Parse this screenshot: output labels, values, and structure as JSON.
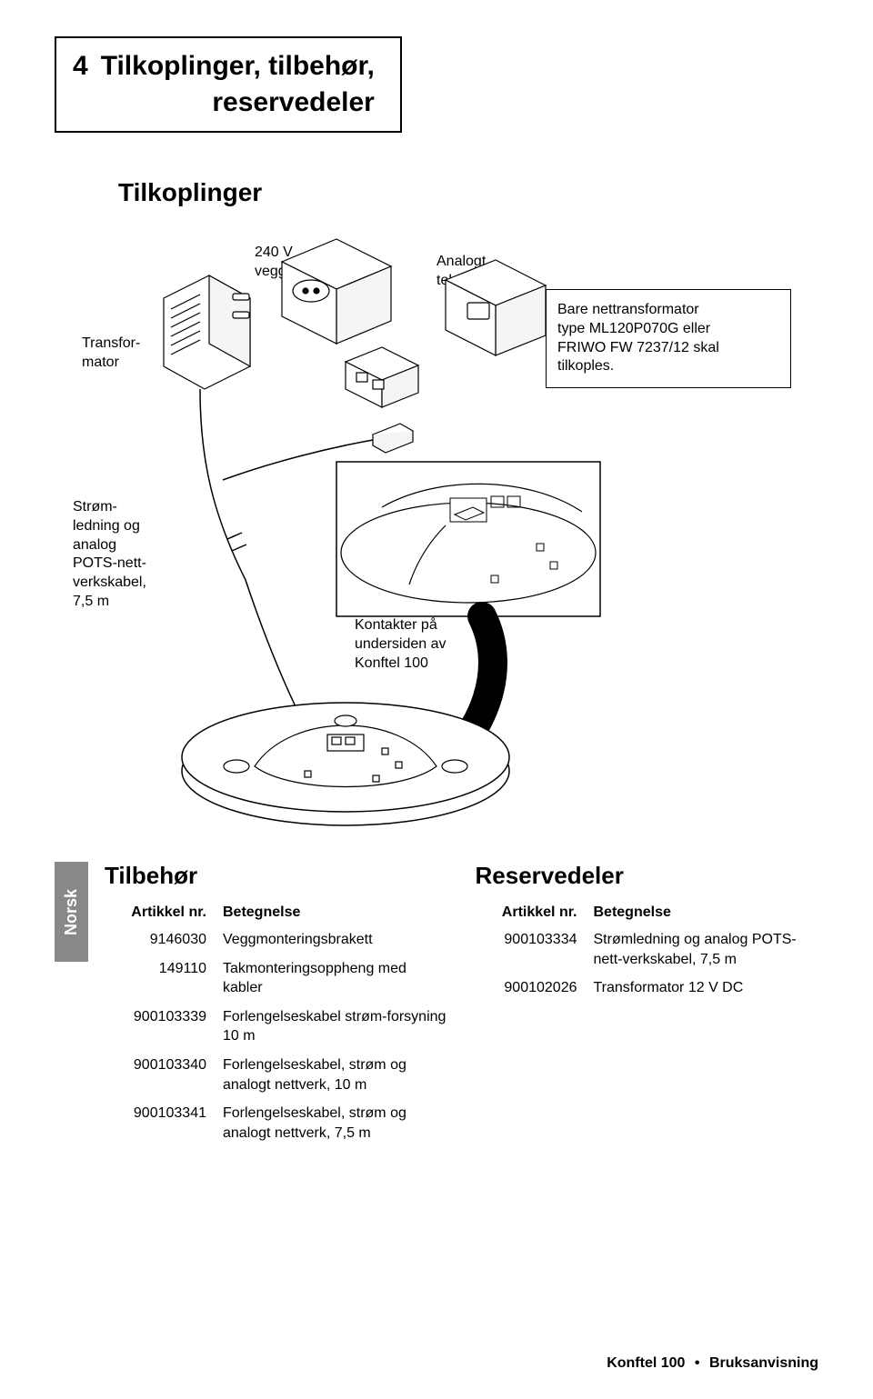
{
  "section_number": "4",
  "title_line1": "Tilkoplinger, tilbehør,",
  "title_line2": "reservedeler",
  "subheading_tilkoplinger": "Tilkoplinger",
  "labels": {
    "transformator": "Transfor-\nmator",
    "veggkontakt": "240 V\nveggkontakt",
    "analogt": "Analogt\ntelefonuttak",
    "stromledning": "Strøm-\nledning og\nanalog\nPOTS-nett-\nverkskabel,\n7,5 m",
    "kontakter": "Kontakter på\nundersiden av\nKonftel 100"
  },
  "info_box": "Bare nettransformator\ntype ML120P070G eller\nFRIWO FW 7237/12 skal\ntilkoples.",
  "sidebar_label": "Norsk",
  "tilbehor": {
    "heading": "Tilbehør",
    "col_art": "Artikkel nr.",
    "col_bet": "Betegnelse",
    "rows": [
      {
        "art": "9146030",
        "bet": "Veggmonteringsbrakett"
      },
      {
        "art": "149110",
        "bet": "Takmonteringsoppheng med kabler"
      },
      {
        "art": "900103339",
        "bet": "Forlengelseskabel strøm-forsyning 10 m"
      },
      {
        "art": "900103340",
        "bet": "Forlengelseskabel, strøm og analogt nettverk, 10 m"
      },
      {
        "art": "900103341",
        "bet": "Forlengelseskabel, strøm og analogt nettverk, 7,5 m"
      }
    ]
  },
  "reservedeler": {
    "heading": "Reservedeler",
    "col_art": "Artikkel nr.",
    "col_bet": "Betegnelse",
    "rows": [
      {
        "art": "900103334",
        "bet": "Strømledning og analog POTS-nett-verkskabel, 7,5 m"
      },
      {
        "art": "900102026",
        "bet": "Transformator 12 V DC"
      }
    ]
  },
  "footer": {
    "product": "Konftel 100",
    "doc": "Bruksanvisning"
  }
}
